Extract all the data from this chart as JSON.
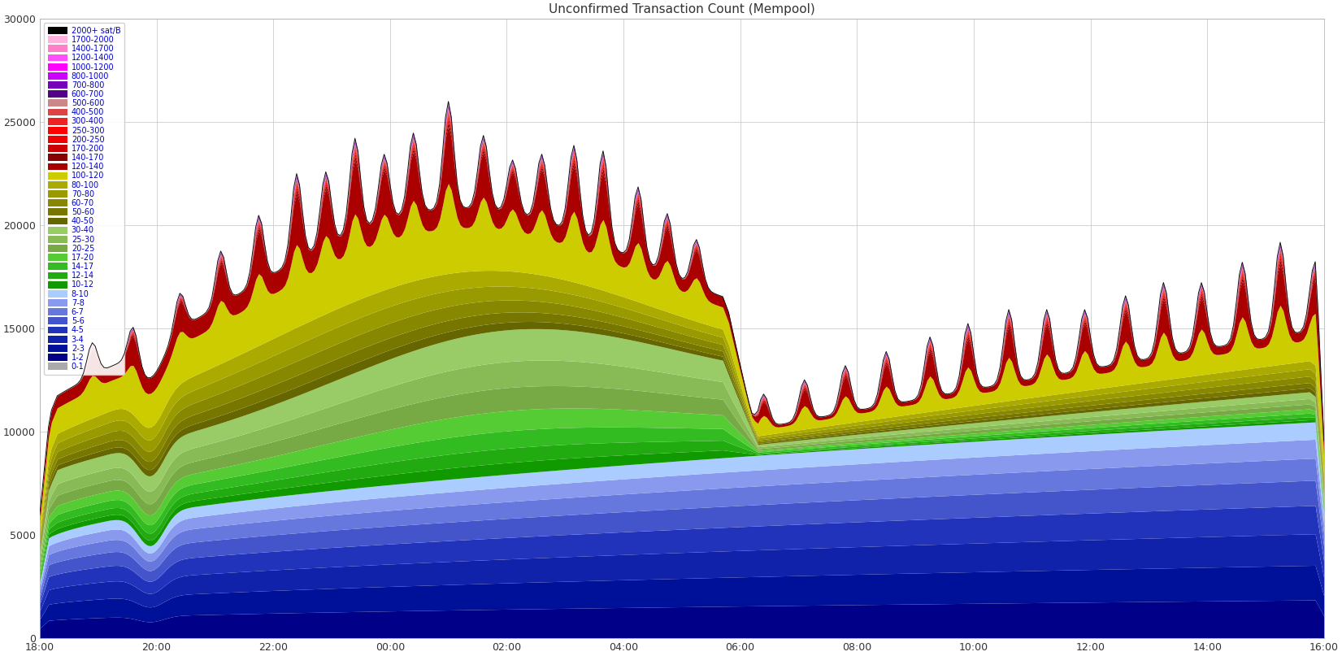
{
  "title": "Unconfirmed Transaction Count (Mempool)",
  "ylim": [
    0,
    30000
  ],
  "xlim": [
    0,
    440
  ],
  "x_tick_labels": [
    "18:00",
    "20:00",
    "22:00",
    "00:00",
    "02:00",
    "04:00",
    "06:00",
    "08:00",
    "10:00",
    "12:00",
    "14:00",
    "16:00"
  ],
  "x_tick_positions": [
    0,
    40,
    80,
    120,
    160,
    200,
    240,
    280,
    320,
    360,
    400,
    440
  ],
  "y_tick_labels": [
    "0",
    "5000",
    "10000",
    "15000",
    "20000",
    "25000",
    "30000"
  ],
  "y_tick_positions": [
    0,
    5000,
    10000,
    15000,
    20000,
    25000,
    30000
  ],
  "legend_labels": [
    "2000+ sat/B",
    "1700-2000",
    "1400-1700",
    "1200-1400",
    "1000-1200",
    "800-1000",
    "700-800",
    "600-700",
    "500-600",
    "400-500",
    "300-400",
    "250-300",
    "200-250",
    "170-200",
    "140-170",
    "120-140",
    "100-120",
    "80-100",
    "70-80",
    "60-70",
    "50-60",
    "40-50",
    "30-40",
    "25-30",
    "20-25",
    "17-20",
    "14-17",
    "12-14",
    "10-12",
    "8-10",
    "7-8",
    "6-7",
    "5-6",
    "4-5",
    "3-4",
    "2-3",
    "1-2",
    "0-1"
  ],
  "legend_colors": [
    "#000000",
    "#ffb3de",
    "#ff80c8",
    "#ff4dff",
    "#ff00ff",
    "#cc00ff",
    "#7700bb",
    "#550088",
    "#cc8888",
    "#dd4444",
    "#ee2222",
    "#ff0000",
    "#ee0000",
    "#cc0000",
    "#880000",
    "#aa0000",
    "#cccc00",
    "#aaaa00",
    "#999900",
    "#888800",
    "#777700",
    "#666600",
    "#99cc66",
    "#88bb55",
    "#77aa44",
    "#55cc33",
    "#33bb22",
    "#22aa11",
    "#119900",
    "#aaccff",
    "#8899ee",
    "#6677dd",
    "#4455cc",
    "#2233bb",
    "#1122aa",
    "#001199",
    "#000088",
    "#aaaaaa"
  ],
  "background_color": "#ffffff",
  "grid_color": "#cccccc",
  "layer_colors_bottom_to_top": [
    "#aaaaaa",
    "#000088",
    "#001199",
    "#1122aa",
    "#2233bb",
    "#4455cc",
    "#6677dd",
    "#8899ee",
    "#aaccff",
    "#119900",
    "#22aa11",
    "#33bb22",
    "#55cc33",
    "#77aa44",
    "#88bb55",
    "#99cc66",
    "#666600",
    "#777700",
    "#888800",
    "#999900",
    "#aaaa00",
    "#cccc00",
    "#aa0000",
    "#880000",
    "#cc0000",
    "#ee0000",
    "#ff0000",
    "#ee2222",
    "#dd4444",
    "#cc8888",
    "#550088",
    "#7700bb",
    "#cc00ff",
    "#ff00ff",
    "#ff4dff",
    "#ff80c8",
    "#ffb3de",
    "#000000"
  ]
}
